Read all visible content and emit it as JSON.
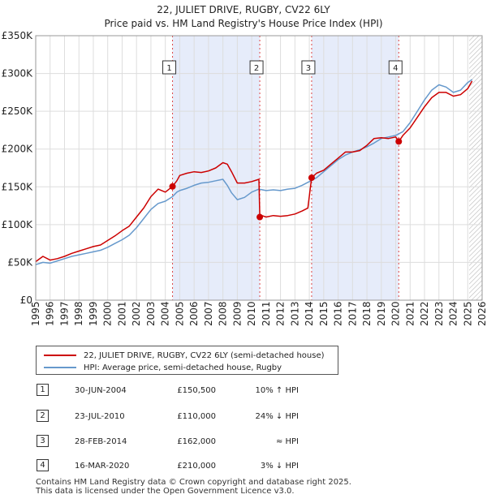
{
  "chart_data": {
    "type": "line",
    "title": "22, JULIET DRIVE, RUGBY, CV22 6LY",
    "subtitle": "Price paid vs. HM Land Registry's House Price Index (HPI)",
    "xlabel": "",
    "ylabel": "",
    "xlim": [
      1995,
      2026
    ],
    "ylim": [
      0,
      350000
    ],
    "x_ticks": [
      "1995",
      "1996",
      "1997",
      "1998",
      "1999",
      "2000",
      "2001",
      "2002",
      "2003",
      "2004",
      "2005",
      "2006",
      "2007",
      "2008",
      "2009",
      "2010",
      "2011",
      "2012",
      "2013",
      "2014",
      "2015",
      "2016",
      "2017",
      "2018",
      "2019",
      "2020",
      "2021",
      "2022",
      "2023",
      "2024",
      "2025",
      "2026"
    ],
    "y_ticks": [
      {
        "value": 0,
        "label": "£0"
      },
      {
        "value": 50000,
        "label": "£50K"
      },
      {
        "value": 100000,
        "label": "£100K"
      },
      {
        "value": 150000,
        "label": "£150K"
      },
      {
        "value": 200000,
        "label": "£200K"
      },
      {
        "value": 250000,
        "label": "£250K"
      },
      {
        "value": 300000,
        "label": "£300K"
      },
      {
        "value": 350000,
        "label": "£350K"
      }
    ],
    "grid": true,
    "shaded_periods": [
      [
        2004.5,
        2010.56
      ],
      [
        2014.16,
        2020.21
      ]
    ],
    "forecast_start": 2025.1,
    "series": [
      {
        "name": "22, JULIET DRIVE, RUGBY, CV22 6LY (semi-detached house)",
        "color": "#cc0000",
        "x": [
          1995.0,
          1995.5,
          1996.0,
          1996.5,
          1997.0,
          1997.5,
          1998.0,
          1998.5,
          1999.0,
          1999.5,
          2000.0,
          2000.5,
          2001.0,
          2001.5,
          2002.0,
          2002.5,
          2003.0,
          2003.5,
          2004.0,
          2004.5,
          2004.8,
          2005.0,
          2005.5,
          2006.0,
          2006.5,
          2007.0,
          2007.5,
          2008.0,
          2008.3,
          2008.6,
          2009.0,
          2009.5,
          2010.0,
          2010.5,
          2010.56,
          2010.7,
          2011.0,
          2011.5,
          2012.0,
          2012.5,
          2013.0,
          2013.5,
          2013.9,
          2014.16,
          2014.5,
          2015.0,
          2015.5,
          2016.0,
          2016.5,
          2017.0,
          2017.5,
          2018.0,
          2018.5,
          2019.0,
          2019.5,
          2020.0,
          2020.21,
          2020.5,
          2021.0,
          2021.5,
          2022.0,
          2022.5,
          2023.0,
          2023.5,
          2024.0,
          2024.5,
          2025.0,
          2025.3
        ],
        "y": [
          51000,
          58000,
          53000,
          55000,
          58000,
          62000,
          65000,
          68000,
          71000,
          73000,
          79000,
          85000,
          92000,
          98000,
          110000,
          122000,
          137000,
          147000,
          143000,
          150500,
          158000,
          165000,
          168000,
          170000,
          169000,
          171000,
          175000,
          182000,
          180000,
          170000,
          155000,
          155000,
          157000,
          160000,
          110000,
          112000,
          110000,
          112000,
          111000,
          112000,
          114000,
          118000,
          122000,
          162000,
          168000,
          172000,
          180000,
          188000,
          196000,
          196000,
          198000,
          205000,
          214000,
          215000,
          214000,
          216000,
          210000,
          218000,
          228000,
          242000,
          256000,
          268000,
          275000,
          275000,
          270000,
          272000,
          280000,
          290000
        ]
      },
      {
        "name": "HPI: Average price, semi-detached house, Rugby",
        "color": "#6699cc",
        "x": [
          1995.0,
          1995.5,
          1996.0,
          1996.5,
          1997.0,
          1997.5,
          1998.0,
          1998.5,
          1999.0,
          1999.5,
          2000.0,
          2000.5,
          2001.0,
          2001.5,
          2002.0,
          2002.5,
          2003.0,
          2003.5,
          2004.0,
          2004.5,
          2004.8,
          2005.0,
          2005.5,
          2006.0,
          2006.5,
          2007.0,
          2007.5,
          2008.0,
          2008.3,
          2008.6,
          2009.0,
          2009.5,
          2010.0,
          2010.5,
          2011.0,
          2011.5,
          2012.0,
          2012.5,
          2013.0,
          2013.5,
          2014.0,
          2014.5,
          2015.0,
          2015.5,
          2016.0,
          2016.5,
          2017.0,
          2017.5,
          2018.0,
          2018.5,
          2019.0,
          2019.5,
          2020.0,
          2020.5,
          2021.0,
          2021.5,
          2022.0,
          2022.5,
          2023.0,
          2023.5,
          2024.0,
          2024.5,
          2025.0,
          2025.3
        ],
        "y": [
          47000,
          50000,
          49000,
          52000,
          55000,
          58000,
          60000,
          62000,
          64000,
          66000,
          70000,
          75000,
          80000,
          86000,
          96000,
          108000,
          120000,
          128000,
          131000,
          137000,
          143000,
          145000,
          148000,
          152000,
          155000,
          156000,
          158000,
          160000,
          152000,
          142000,
          133000,
          136000,
          143000,
          147000,
          145000,
          146000,
          145000,
          147000,
          148000,
          152000,
          157000,
          162000,
          170000,
          178000,
          186000,
          192000,
          196000,
          199000,
          203000,
          208000,
          214000,
          216000,
          218000,
          223000,
          235000,
          250000,
          265000,
          278000,
          285000,
          282000,
          275000,
          278000,
          288000,
          292000
        ]
      }
    ],
    "markers": [
      {
        "label": "1",
        "x": 2004.5,
        "y": 150500
      },
      {
        "label": "2",
        "x": 2010.56,
        "y": 110000
      },
      {
        "label": "3",
        "x": 2014.16,
        "y": 162000
      },
      {
        "label": "4",
        "x": 2020.21,
        "y": 210000
      }
    ]
  },
  "legend": {
    "property": "22, JULIET DRIVE, RUGBY, CV22 6LY (semi-detached house)",
    "hpi": "HPI: Average price, semi-detached house, Rugby",
    "property_color": "#cc0000",
    "hpi_color": "#6699cc"
  },
  "sales": [
    {
      "num": "1",
      "date": "30-JUN-2004",
      "price": "£150,500",
      "relation": "10% ↑ HPI"
    },
    {
      "num": "2",
      "date": "23-JUL-2010",
      "price": "£110,000",
      "relation": "24% ↓ HPI"
    },
    {
      "num": "3",
      "date": "28-FEB-2014",
      "price": "£162,000",
      "relation": "≈ HPI"
    },
    {
      "num": "4",
      "date": "16-MAR-2020",
      "price": "£210,000",
      "relation": "3% ↓ HPI"
    }
  ],
  "footer": {
    "line1": "Contains HM Land Registry data © Crown copyright and database right 2025.",
    "line2": "This data is licensed under the Open Government Licence v3.0."
  }
}
